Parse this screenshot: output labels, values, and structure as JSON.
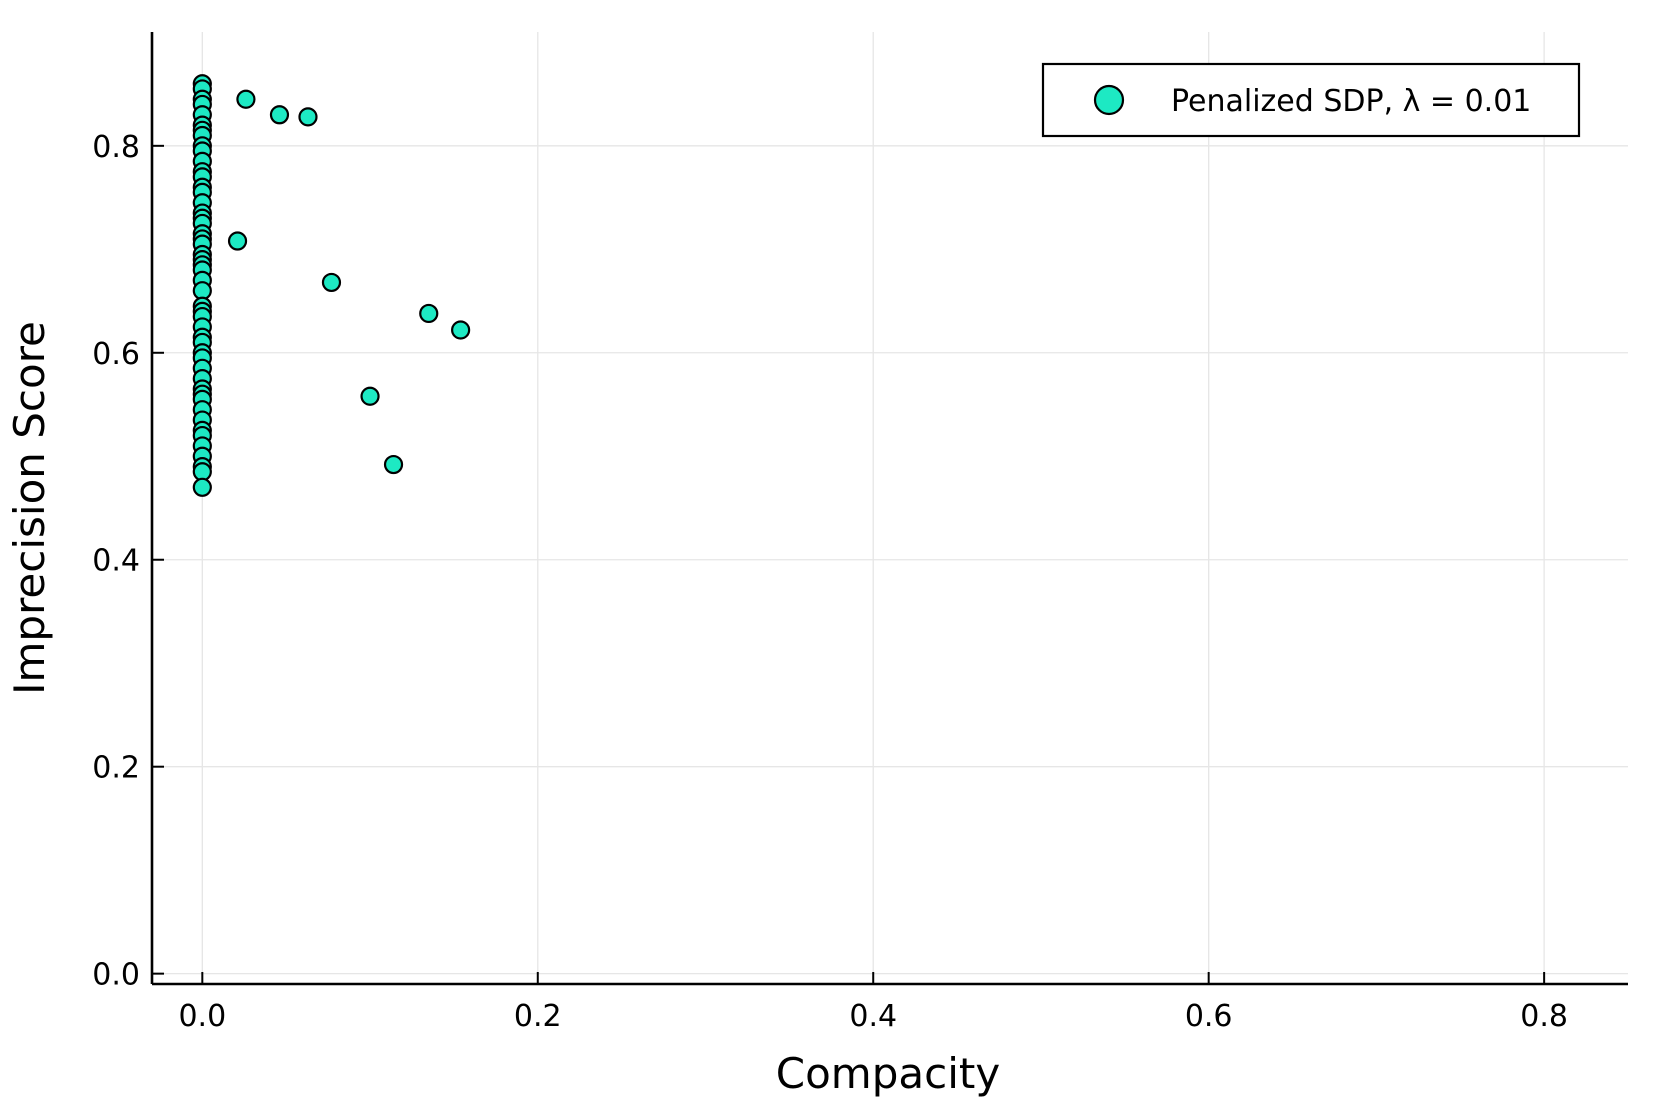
{
  "chart_data": {
    "type": "scatter",
    "title": "",
    "xlabel": "Compacity",
    "ylabel": "Imprecision Score",
    "xlim": [
      -0.03,
      0.85
    ],
    "ylim": [
      -0.01,
      0.91
    ],
    "xticks": [
      {
        "value": 0.0,
        "label": "0.0"
      },
      {
        "value": 0.2,
        "label": "0.2"
      },
      {
        "value": 0.4,
        "label": "0.4"
      },
      {
        "value": 0.6,
        "label": "0.6"
      },
      {
        "value": 0.8,
        "label": "0.8"
      }
    ],
    "yticks": [
      {
        "value": 0.0,
        "label": "0.0"
      },
      {
        "value": 0.2,
        "label": "0.2"
      },
      {
        "value": 0.4,
        "label": "0.4"
      },
      {
        "value": 0.6,
        "label": "0.6"
      },
      {
        "value": 0.8,
        "label": "0.8"
      }
    ],
    "grid": true,
    "legend_position": "top-right",
    "series": [
      {
        "name": "Penalized SDP, λ = 0.01",
        "color": "#1de9c3",
        "edge_color": "#000000",
        "x": [
          0,
          0,
          0,
          0,
          0,
          0,
          0,
          0,
          0,
          0,
          0,
          0,
          0,
          0,
          0,
          0,
          0,
          0,
          0,
          0,
          0,
          0,
          0,
          0,
          0,
          0,
          0,
          0,
          0,
          0,
          0,
          0,
          0,
          0,
          0,
          0,
          0,
          0,
          0,
          0,
          0,
          0,
          0,
          0,
          0,
          0,
          0,
          0,
          0,
          0,
          0.026,
          0.046,
          0.063,
          0.021,
          0.077,
          0.135,
          0.154,
          0.1,
          0.114
        ],
        "y": [
          0.86,
          0.855,
          0.845,
          0.84,
          0.83,
          0.82,
          0.815,
          0.81,
          0.8,
          0.795,
          0.785,
          0.775,
          0.77,
          0.76,
          0.755,
          0.745,
          0.735,
          0.73,
          0.725,
          0.715,
          0.71,
          0.705,
          0.695,
          0.69,
          0.685,
          0.68,
          0.67,
          0.66,
          0.645,
          0.64,
          0.635,
          0.625,
          0.615,
          0.61,
          0.6,
          0.595,
          0.585,
          0.575,
          0.565,
          0.56,
          0.555,
          0.545,
          0.535,
          0.525,
          0.52,
          0.51,
          0.5,
          0.49,
          0.485,
          0.47,
          0.845,
          0.83,
          0.828,
          0.708,
          0.668,
          0.638,
          0.622,
          0.558,
          0.492
        ]
      }
    ]
  }
}
